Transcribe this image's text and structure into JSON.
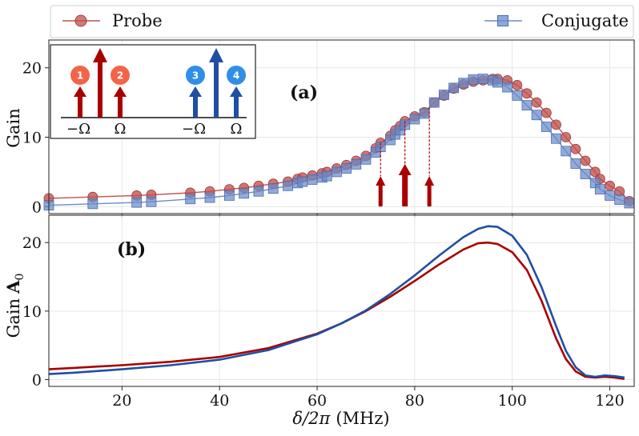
{
  "chart_data": [
    {
      "panel": "a",
      "type": "line",
      "panel_label": "(a)",
      "ylabel": "Gain",
      "xlim": [
        5,
        125
      ],
      "ylim": [
        -1,
        24
      ],
      "yticks": [
        0,
        10,
        20
      ],
      "legend": {
        "placement": "top",
        "entries": [
          "Probe",
          "Conjugate"
        ]
      },
      "series": [
        {
          "name": "Probe",
          "color": "#c0504d",
          "marker": "circle",
          "x": [
            5,
            14,
            23,
            26,
            34,
            38,
            42,
            45,
            48,
            51,
            54,
            56,
            57,
            59,
            61,
            62,
            64,
            66,
            68,
            70,
            72,
            73,
            75,
            76,
            77,
            78,
            80,
            82,
            84,
            86,
            88,
            90,
            92,
            94,
            96,
            97,
            99,
            101,
            103,
            105,
            107,
            109,
            111,
            113,
            115,
            117,
            118,
            120,
            122,
            124
          ],
          "y": [
            1.2,
            1.4,
            1.6,
            1.7,
            2.0,
            2.2,
            2.5,
            2.7,
            3.0,
            3.3,
            3.6,
            4.0,
            4.2,
            4.5,
            4.8,
            5.0,
            5.5,
            6.0,
            6.6,
            7.3,
            8.4,
            9.2,
            10.2,
            11.0,
            11.6,
            12.3,
            13.0,
            13.6,
            15.0,
            16.0,
            17.0,
            17.6,
            18.0,
            18.2,
            18.4,
            18.4,
            18.2,
            17.5,
            16.3,
            15.0,
            13.5,
            11.8,
            10.0,
            8.3,
            6.6,
            5.0,
            4.0,
            3.0,
            2.2,
            0.8
          ]
        },
        {
          "name": "Conjugate",
          "color": "#6a8bc9",
          "marker": "square",
          "x": [
            5,
            14,
            23,
            26,
            34,
            38,
            42,
            45,
            48,
            51,
            54,
            56,
            57,
            59,
            61,
            62,
            64,
            66,
            68,
            70,
            72,
            73,
            75,
            76,
            77,
            78,
            80,
            82,
            84,
            86,
            88,
            90,
            92,
            94,
            96,
            97,
            99,
            101,
            103,
            105,
            107,
            109,
            111,
            113,
            115,
            117,
            118,
            120,
            122,
            124
          ],
          "y": [
            0.2,
            0.4,
            0.6,
            0.7,
            1.1,
            1.3,
            1.6,
            1.9,
            2.2,
            2.6,
            3.0,
            3.4,
            3.6,
            3.9,
            4.2,
            4.4,
            5.0,
            5.5,
            6.1,
            6.8,
            7.8,
            8.6,
            9.6,
            10.4,
            11.0,
            11.8,
            12.6,
            13.4,
            15.0,
            16.1,
            17.1,
            17.8,
            18.3,
            18.4,
            18.2,
            17.9,
            17.2,
            16.0,
            14.6,
            13.2,
            11.5,
            9.8,
            8.0,
            6.2,
            4.7,
            3.4,
            2.5,
            1.6,
            1.0,
            0.5
          ]
        }
      ],
      "arrows": {
        "color": "#a80000",
        "x": [
          73,
          78,
          83
        ],
        "sizes": [
          "small",
          "large",
          "small"
        ]
      },
      "inset": {
        "labels": [
          "1",
          "2",
          "3",
          "4"
        ],
        "axis_labels": [
          "−Ω",
          "Ω",
          "−Ω",
          "Ω"
        ],
        "colors": {
          "red_circle": "#f26548",
          "blue_circle": "#2f8fe8",
          "red_arrow": "#a80000",
          "blue_arrow": "#1f4fa3"
        }
      }
    },
    {
      "panel": "b",
      "type": "line",
      "panel_label": "(b)",
      "ylabel": "Gain",
      "ylabel_math": "A",
      "ylabel_sub": "0",
      "xlabel_symbol": "δ/2π",
      "xlabel_unit": "(MHz)",
      "xlim": [
        5,
        125
      ],
      "ylim": [
        -1,
        24
      ],
      "xticks": [
        20,
        40,
        60,
        80,
        100,
        120
      ],
      "yticks": [
        0,
        10,
        20
      ],
      "series": [
        {
          "name": "red",
          "color": "#a80000",
          "x": [
            5,
            10,
            20,
            30,
            40,
            50,
            60,
            65,
            70,
            75,
            80,
            85,
            90,
            93,
            95,
            97,
            100,
            103,
            106,
            109,
            111,
            113,
            115,
            117,
            119,
            121,
            123
          ],
          "y": [
            1.5,
            1.7,
            2.1,
            2.6,
            3.3,
            4.6,
            6.7,
            8.2,
            10.0,
            12.1,
            14.4,
            16.8,
            19.0,
            19.9,
            20.0,
            19.8,
            18.6,
            16.0,
            11.5,
            6.0,
            3.0,
            1.2,
            0.4,
            0.3,
            0.4,
            0.3,
            0.1
          ]
        },
        {
          "name": "blue",
          "color": "#1f4fa3",
          "x": [
            5,
            10,
            20,
            30,
            40,
            50,
            60,
            65,
            70,
            75,
            80,
            85,
            90,
            93,
            95,
            97,
            100,
            103,
            106,
            109,
            111,
            113,
            115,
            117,
            119,
            121,
            123
          ],
          "y": [
            0.8,
            1.0,
            1.5,
            2.1,
            2.9,
            4.3,
            6.6,
            8.2,
            10.1,
            12.5,
            15.2,
            18.1,
            20.8,
            22.0,
            22.4,
            22.3,
            21.0,
            18.2,
            13.5,
            7.8,
            4.2,
            1.8,
            0.6,
            0.4,
            0.6,
            0.5,
            0.3
          ]
        }
      ]
    }
  ]
}
